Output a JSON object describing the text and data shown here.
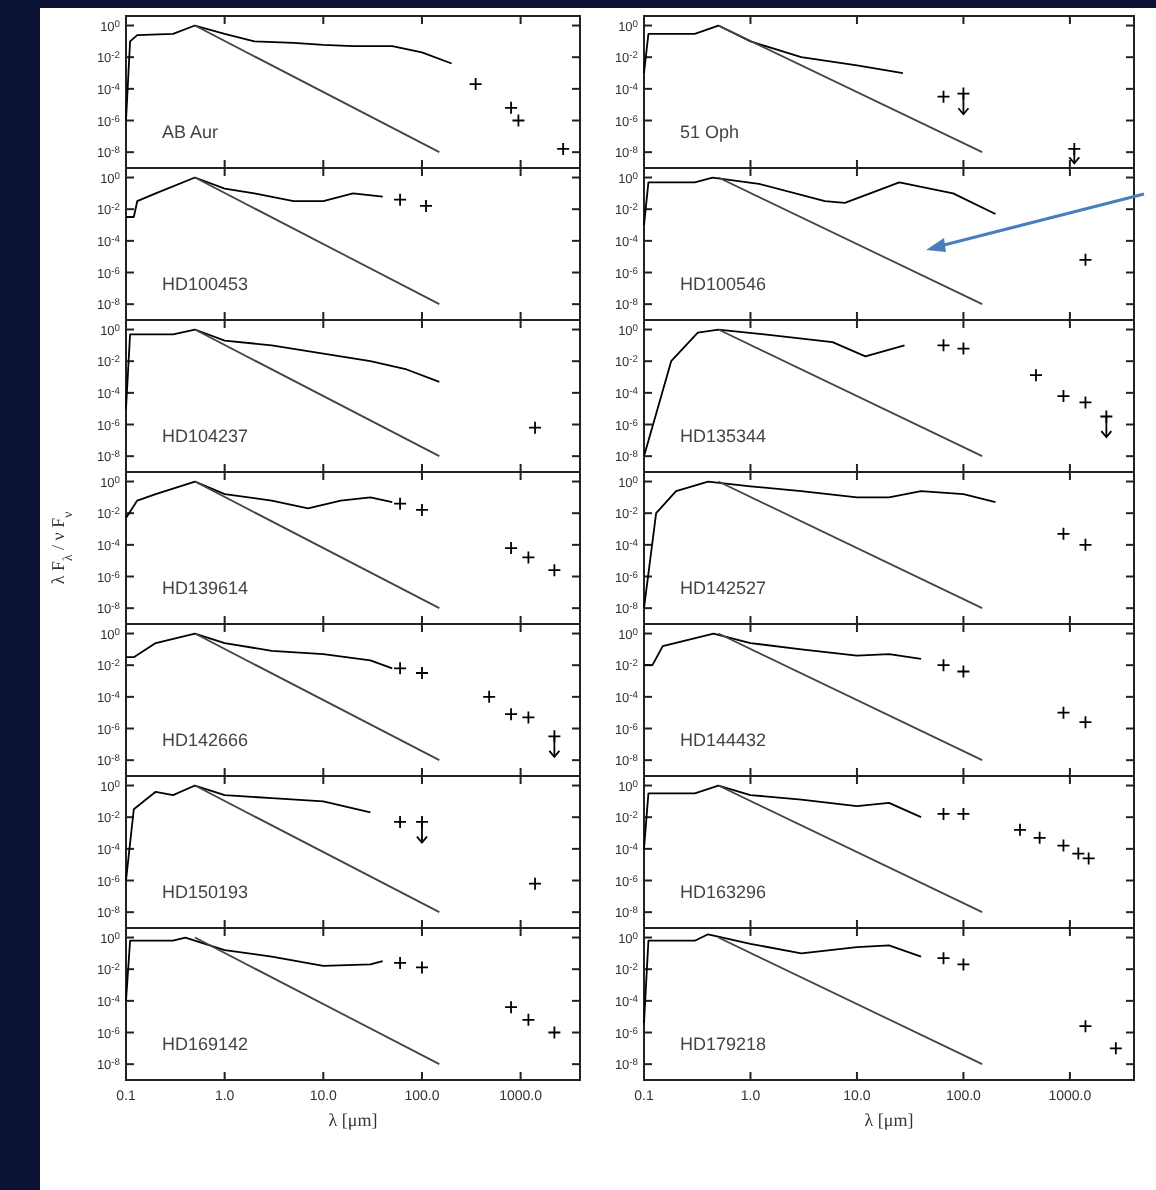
{
  "chart_data": [
    {
      "type": "line",
      "log": "xy",
      "xlim": [
        0.1,
        4000
      ],
      "ylim": [
        1e-09,
        4
      ],
      "tick_labels": "y",
      "annotations": [
        "AB Aur"
      ],
      "xticks": [
        {
          "value": 1,
          "label": null
        },
        {
          "value": 10,
          "label": null
        },
        {
          "value": 100,
          "label": null
        },
        {
          "value": 1000,
          "label": null
        }
      ],
      "yticks": [
        {
          "value": 1,
          "label": "10$^{0}$"
        },
        {
          "value": 0.01,
          "label": "10$^{-2}$"
        },
        {
          "value": 0.0001,
          "label": "10$^{-4}$"
        },
        {
          "value": 1e-06,
          "label": "10$^{-6}$"
        },
        {
          "value": 1e-08,
          "label": "10$^{-8}$"
        }
      ],
      "series": [
        {
          "type": "line",
          "color": "#000000",
          "x": [
            0.1,
            0.11,
            0.13,
            0.3,
            0.5,
            1,
            2,
            5,
            10,
            20,
            50,
            100,
            200
          ],
          "values": [
            1e-06,
            0.1,
            0.25,
            0.3,
            1,
            0.3,
            0.1,
            0.08,
            0.06,
            0.05,
            0.05,
            0.02,
            0.004
          ]
        },
        {
          "type": "scatter",
          "marker": "cross",
          "color": "#000000",
          "x": [
            350,
            800,
            950,
            2700
          ],
          "values": [
            0.0002,
            6.3e-06,
            1e-06,
            1.6e-08
          ]
        },
        {
          "type": "line",
          "color": "#444444",
          "x": [
            0.5,
            150
          ],
          "values": [
            1,
            1e-08
          ]
        }
      ]
    },
    {
      "type": "line",
      "log": "xy",
      "xlim": [
        0.1,
        4000
      ],
      "ylim": [
        1e-09,
        4
      ],
      "tick_labels": "y",
      "annotations": [
        "51 Oph"
      ],
      "xticks": [
        {
          "value": 1,
          "label": null
        },
        {
          "value": 10,
          "label": null
        },
        {
          "value": 100,
          "label": null
        },
        {
          "value": 1000,
          "label": null
        }
      ],
      "yticks": [
        {
          "value": 1,
          "label": "10$^{0}$"
        },
        {
          "value": 0.01,
          "label": "10$^{-2}$"
        },
        {
          "value": 0.0001,
          "label": "10$^{-4}$"
        },
        {
          "value": 1e-06,
          "label": "10$^{-6}$"
        },
        {
          "value": 1e-08,
          "label": "10$^{-8}$"
        }
      ],
      "series": [
        {
          "type": "line",
          "color": "#000000",
          "x": [
            0.1,
            0.11,
            0.3,
            0.5,
            1,
            3,
            10,
            27
          ],
          "values": [
            0.001,
            0.3,
            0.3,
            1,
            0.1,
            0.01,
            0.003,
            0.001
          ]
        },
        {
          "type": "scatter",
          "marker": "cross",
          "color": "#000000",
          "x": [
            65
          ],
          "values": [
            3.2e-05
          ]
        },
        {
          "type": "scatter",
          "marker": "cross",
          "color": "#000000",
          "x": [
            100,
            1100
          ],
          "values": [
            5e-05,
            1.6e-08
          ],
          "errors": [
            [
              2.5e-06,
              5e-05
            ],
            [
              2e-09,
              1.6e-08
            ]
          ]
        },
        {
          "type": "line",
          "color": "#444444",
          "x": [
            0.5,
            150
          ],
          "values": [
            1,
            1e-08
          ]
        }
      ]
    },
    {
      "type": "line",
      "log": "xy",
      "xlim": [
        0.1,
        4000
      ],
      "ylim": [
        1e-09,
        4
      ],
      "tick_labels": "y",
      "annotations": [
        "HD100453"
      ],
      "xticks": [
        {
          "value": 1,
          "label": null
        },
        {
          "value": 10,
          "label": null
        },
        {
          "value": 100,
          "label": null
        },
        {
          "value": 1000,
          "label": null
        }
      ],
      "yticks": [
        {
          "value": 1,
          "label": "10$^{0}$"
        },
        {
          "value": 0.01,
          "label": "10$^{-2}$"
        },
        {
          "value": 0.0001,
          "label": "10$^{-4}$"
        },
        {
          "value": 1e-06,
          "label": "10$^{-6}$"
        },
        {
          "value": 1e-08,
          "label": "10$^{-8}$"
        }
      ],
      "series": [
        {
          "type": "line",
          "color": "#000000",
          "x": [
            0.1,
            0.12,
            0.13,
            0.2,
            0.5,
            1,
            2,
            5,
            10,
            20,
            40
          ],
          "values": [
            0.0032,
            0.0032,
            0.032,
            0.1,
            1,
            0.2,
            0.1,
            0.032,
            0.032,
            0.1,
            0.063
          ]
        },
        {
          "type": "scatter",
          "marker": "cross",
          "color": "#000000",
          "x": [
            60,
            110
          ],
          "values": [
            0.04,
            0.016
          ]
        },
        {
          "type": "line",
          "color": "#444444",
          "x": [
            0.5,
            150
          ],
          "values": [
            1,
            1e-08
          ]
        }
      ]
    },
    {
      "type": "line",
      "log": "xy",
      "xlim": [
        0.1,
        4000
      ],
      "ylim": [
        1e-09,
        4
      ],
      "tick_labels": "y",
      "annotations": [
        "HD100546"
      ],
      "xticks": [
        {
          "value": 1,
          "label": null
        },
        {
          "value": 10,
          "label": null
        },
        {
          "value": 100,
          "label": null
        },
        {
          "value": 1000,
          "label": null
        }
      ],
      "yticks": [
        {
          "value": 1,
          "label": "10$^{0}$"
        },
        {
          "value": 0.01,
          "label": "10$^{-2}$"
        },
        {
          "value": 0.0001,
          "label": "10$^{-4}$"
        },
        {
          "value": 1e-06,
          "label": "10$^{-6}$"
        },
        {
          "value": 1e-08,
          "label": "10$^{-8}$"
        }
      ],
      "series": [
        {
          "type": "line",
          "color": "#000000",
          "x": [
            0.1,
            0.11,
            0.3,
            0.44,
            1.2,
            5,
            7.7,
            25,
            80,
            200
          ],
          "values": [
            0.001,
            0.5,
            0.5,
            1,
            0.4,
            0.032,
            0.025,
            0.5,
            0.1,
            0.005
          ]
        },
        {
          "type": "scatter",
          "marker": "cross",
          "color": "#000000",
          "x": [
            1400
          ],
          "values": [
            6.3e-06
          ]
        },
        {
          "type": "line",
          "color": "#444444",
          "x": [
            0.5,
            150
          ],
          "values": [
            1,
            1e-08
          ]
        }
      ]
    },
    {
      "type": "line",
      "log": "xy",
      "xlim": [
        0.1,
        4000
      ],
      "ylim": [
        1e-09,
        4
      ],
      "tick_labels": "y",
      "annotations": [
        "HD104237"
      ],
      "xticks": [
        {
          "value": 1,
          "label": null
        },
        {
          "value": 10,
          "label": null
        },
        {
          "value": 100,
          "label": null
        },
        {
          "value": 1000,
          "label": null
        }
      ],
      "yticks": [
        {
          "value": 1,
          "label": "10$^{0}$"
        },
        {
          "value": 0.01,
          "label": "10$^{-2}$"
        },
        {
          "value": 0.0001,
          "label": "10$^{-4}$"
        },
        {
          "value": 1e-06,
          "label": "10$^{-6}$"
        },
        {
          "value": 1e-08,
          "label": "10$^{-8}$"
        }
      ],
      "series": [
        {
          "type": "line",
          "color": "#000000",
          "x": [
            0.1,
            0.11,
            0.3,
            0.5,
            1,
            3,
            10,
            30,
            70,
            150
          ],
          "values": [
            1e-05,
            0.5,
            0.5,
            1,
            0.2,
            0.1,
            0.03,
            0.01,
            0.003,
            0.0005
          ]
        },
        {
          "type": "scatter",
          "marker": "cross",
          "color": "#000000",
          "x": [
            1400
          ],
          "values": [
            6.3e-07
          ]
        },
        {
          "type": "line",
          "color": "#444444",
          "x": [
            0.5,
            150
          ],
          "values": [
            1,
            1e-08
          ]
        }
      ]
    },
    {
      "type": "line",
      "log": "xy",
      "xlim": [
        0.1,
        4000
      ],
      "ylim": [
        1e-09,
        4
      ],
      "tick_labels": "y",
      "annotations": [
        "HD135344"
      ],
      "xticks": [
        {
          "value": 1,
          "label": null
        },
        {
          "value": 10,
          "label": null
        },
        {
          "value": 100,
          "label": null
        },
        {
          "value": 1000,
          "label": null
        }
      ],
      "yticks": [
        {
          "value": 1,
          "label": "10$^{0}$"
        },
        {
          "value": 0.01,
          "label": "10$^{-2}$"
        },
        {
          "value": 0.0001,
          "label": "10$^{-4}$"
        },
        {
          "value": 1e-06,
          "label": "10$^{-6}$"
        },
        {
          "value": 1e-08,
          "label": "10$^{-8}$"
        }
      ],
      "series": [
        {
          "type": "line",
          "color": "#000000",
          "x": [
            0.1,
            0.18,
            0.32,
            0.5,
            1.8,
            5.9,
            12,
            28
          ],
          "values": [
            1e-08,
            0.01,
            0.63,
            1,
            0.4,
            0.16,
            0.02,
            0.1
          ]
        },
        {
          "type": "scatter",
          "marker": "cross",
          "color": "#000000",
          "x": [
            65,
            100,
            480,
            870,
            1400
          ],
          "values": [
            0.1,
            0.063,
            0.0013,
            6.3e-05,
            2.5e-05
          ]
        },
        {
          "type": "scatter",
          "marker": "cross",
          "color": "#000000",
          "x": [
            2200
          ],
          "values": [
            3.2e-06
          ],
          "errors": [
            [
              1.6e-07,
              3.2e-06
            ]
          ]
        },
        {
          "type": "line",
          "color": "#444444",
          "x": [
            0.5,
            150
          ],
          "values": [
            1,
            1e-08
          ]
        }
      ]
    },
    {
      "type": "line",
      "log": "xy",
      "xlim": [
        0.1,
        4000
      ],
      "ylim": [
        1e-09,
        4
      ],
      "tick_labels": "y",
      "ylabel": "λ F$_{λ}$ / ν F$_{ν}$",
      "annotations": [
        "HD139614"
      ],
      "xticks": [
        {
          "value": 1,
          "label": null
        },
        {
          "value": 10,
          "label": null
        },
        {
          "value": 100,
          "label": null
        },
        {
          "value": 1000,
          "label": null
        }
      ],
      "yticks": [
        {
          "value": 1,
          "label": "10$^{0}$"
        },
        {
          "value": 0.01,
          "label": "10$^{-2}$"
        },
        {
          "value": 0.0001,
          "label": "10$^{-4}$"
        },
        {
          "value": 1e-06,
          "label": "10$^{-6}$"
        },
        {
          "value": 1e-08,
          "label": "10$^{-8}$"
        }
      ],
      "series": [
        {
          "type": "line",
          "color": "#000000",
          "x": [
            0.1,
            0.13,
            0.2,
            0.5,
            1,
            3,
            7,
            15,
            30,
            50
          ],
          "values": [
            0.005,
            0.063,
            0.16,
            1,
            0.16,
            0.063,
            0.02,
            0.063,
            0.1,
            0.05
          ]
        },
        {
          "type": "scatter",
          "marker": "cross",
          "color": "#000000",
          "x": [
            60,
            100,
            800,
            1200,
            2200
          ],
          "values": [
            0.04,
            0.016,
            6.3e-05,
            1.6e-05,
            2.5e-06
          ]
        },
        {
          "type": "line",
          "color": "#444444",
          "x": [
            0.5,
            150
          ],
          "values": [
            1,
            1e-08
          ]
        }
      ]
    },
    {
      "type": "line",
      "log": "xy",
      "xlim": [
        0.1,
        4000
      ],
      "ylim": [
        1e-09,
        4
      ],
      "tick_labels": "y",
      "annotations": [
        "HD142527"
      ],
      "xticks": [
        {
          "value": 1,
          "label": null
        },
        {
          "value": 10,
          "label": null
        },
        {
          "value": 100,
          "label": null
        },
        {
          "value": 1000,
          "label": null
        }
      ],
      "yticks": [
        {
          "value": 1,
          "label": "10$^{0}$"
        },
        {
          "value": 0.01,
          "label": "10$^{-2}$"
        },
        {
          "value": 0.0001,
          "label": "10$^{-4}$"
        },
        {
          "value": 1e-06,
          "label": "10$^{-6}$"
        },
        {
          "value": 1e-08,
          "label": "10$^{-8}$"
        }
      ],
      "series": [
        {
          "type": "line",
          "color": "#000000",
          "x": [
            0.1,
            0.13,
            0.2,
            0.4,
            1,
            3,
            10,
            20,
            40,
            100,
            200
          ],
          "values": [
            1e-08,
            0.01,
            0.25,
            1,
            0.5,
            0.25,
            0.1,
            0.1,
            0.25,
            0.16,
            0.05
          ]
        },
        {
          "type": "scatter",
          "marker": "cross",
          "color": "#000000",
          "x": [
            870,
            1400
          ],
          "values": [
            0.0005,
            0.0001
          ]
        },
        {
          "type": "line",
          "color": "#444444",
          "x": [
            0.5,
            150
          ],
          "values": [
            1,
            1e-08
          ]
        }
      ]
    },
    {
      "type": "line",
      "log": "xy",
      "xlim": [
        0.1,
        4000
      ],
      "ylim": [
        1e-09,
        4
      ],
      "tick_labels": "y",
      "annotations": [
        "HD142666"
      ],
      "xticks": [
        {
          "value": 1,
          "label": null
        },
        {
          "value": 10,
          "label": null
        },
        {
          "value": 100,
          "label": null
        },
        {
          "value": 1000,
          "label": null
        }
      ],
      "yticks": [
        {
          "value": 1,
          "label": "10$^{0}$"
        },
        {
          "value": 0.01,
          "label": "10$^{-2}$"
        },
        {
          "value": 0.0001,
          "label": "10$^{-4}$"
        },
        {
          "value": 1e-06,
          "label": "10$^{-6}$"
        },
        {
          "value": 1e-08,
          "label": "10$^{-8}$"
        }
      ],
      "series": [
        {
          "type": "line",
          "color": "#000000",
          "x": [
            0.1,
            0.12,
            0.2,
            0.5,
            1,
            3,
            10,
            30,
            50
          ],
          "values": [
            0.032,
            0.032,
            0.25,
            1,
            0.25,
            0.08,
            0.05,
            0.02,
            0.0063
          ]
        },
        {
          "type": "scatter",
          "marker": "cross",
          "color": "#000000",
          "x": [
            60,
            100,
            480,
            800,
            1200
          ],
          "values": [
            0.0063,
            0.0032,
            0.0001,
            8e-06,
            5e-06
          ]
        },
        {
          "type": "scatter",
          "marker": "cross",
          "color": "#000000",
          "x": [
            2200
          ],
          "values": [
            3.2e-07
          ],
          "errors": [
            [
              1.6e-08,
              3.2e-07
            ]
          ]
        },
        {
          "type": "line",
          "color": "#444444",
          "x": [
            0.5,
            150
          ],
          "values": [
            1,
            1e-08
          ]
        }
      ]
    },
    {
      "type": "line",
      "log": "xy",
      "xlim": [
        0.1,
        4000
      ],
      "ylim": [
        1e-09,
        4
      ],
      "tick_labels": "y",
      "annotations": [
        "HD144432"
      ],
      "xticks": [
        {
          "value": 1,
          "label": null
        },
        {
          "value": 10,
          "label": null
        },
        {
          "value": 100,
          "label": null
        },
        {
          "value": 1000,
          "label": null
        }
      ],
      "yticks": [
        {
          "value": 1,
          "label": "10$^{0}$"
        },
        {
          "value": 0.01,
          "label": "10$^{-2}$"
        },
        {
          "value": 0.0001,
          "label": "10$^{-4}$"
        },
        {
          "value": 1e-06,
          "label": "10$^{-6}$"
        },
        {
          "value": 1e-08,
          "label": "10$^{-8}$"
        }
      ],
      "series": [
        {
          "type": "line",
          "color": "#000000",
          "x": [
            0.1,
            0.12,
            0.15,
            0.45,
            1,
            3,
            10,
            20,
            40
          ],
          "values": [
            0.01,
            0.01,
            0.16,
            1,
            0.25,
            0.1,
            0.04,
            0.05,
            0.025
          ]
        },
        {
          "type": "scatter",
          "marker": "cross",
          "color": "#000000",
          "x": [
            65,
            100,
            870,
            1400
          ],
          "values": [
            0.01,
            0.004,
            1e-05,
            2.5e-06
          ]
        },
        {
          "type": "line",
          "color": "#444444",
          "x": [
            0.5,
            150
          ],
          "values": [
            1,
            1e-08
          ]
        }
      ]
    },
    {
      "type": "line",
      "log": "xy",
      "xlim": [
        0.1,
        4000
      ],
      "ylim": [
        1e-09,
        4
      ],
      "tick_labels": "y",
      "annotations": [
        "HD150193"
      ],
      "xticks": [
        {
          "value": 1,
          "label": null
        },
        {
          "value": 10,
          "label": null
        },
        {
          "value": 100,
          "label": null
        },
        {
          "value": 1000,
          "label": null
        }
      ],
      "yticks": [
        {
          "value": 1,
          "label": "10$^{0}$"
        },
        {
          "value": 0.01,
          "label": "10$^{-2}$"
        },
        {
          "value": 0.0001,
          "label": "10$^{-4}$"
        },
        {
          "value": 1e-06,
          "label": "10$^{-6}$"
        },
        {
          "value": 1e-08,
          "label": "10$^{-8}$"
        }
      ],
      "series": [
        {
          "type": "line",
          "color": "#000000",
          "x": [
            0.1,
            0.12,
            0.2,
            0.3,
            0.5,
            1,
            3,
            10,
            30
          ],
          "values": [
            1e-06,
            0.032,
            0.4,
            0.25,
            1,
            0.25,
            0.16,
            0.1,
            0.02
          ]
        },
        {
          "type": "scatter",
          "marker": "cross",
          "color": "#000000",
          "x": [
            60,
            1400
          ],
          "values": [
            0.005,
            6.3e-07
          ]
        },
        {
          "type": "scatter",
          "marker": "cross",
          "color": "#000000",
          "x": [
            100
          ],
          "values": [
            0.005
          ],
          "errors": [
            [
              0.00025,
              0.005
            ]
          ]
        },
        {
          "type": "line",
          "color": "#444444",
          "x": [
            0.5,
            150
          ],
          "values": [
            1,
            1e-08
          ]
        }
      ]
    },
    {
      "type": "line",
      "log": "xy",
      "xlim": [
        0.1,
        4000
      ],
      "ylim": [
        1e-09,
        4
      ],
      "tick_labels": "y",
      "annotations": [
        "HD163296"
      ],
      "xticks": [
        {
          "value": 1,
          "label": null
        },
        {
          "value": 10,
          "label": null
        },
        {
          "value": 100,
          "label": null
        },
        {
          "value": 1000,
          "label": null
        }
      ],
      "yticks": [
        {
          "value": 1,
          "label": "10$^{0}$"
        },
        {
          "value": 0.01,
          "label": "10$^{-2}$"
        },
        {
          "value": 0.0001,
          "label": "10$^{-4}$"
        },
        {
          "value": 1e-06,
          "label": "10$^{-6}$"
        },
        {
          "value": 1e-08,
          "label": "10$^{-8}$"
        }
      ],
      "series": [
        {
          "type": "line",
          "color": "#000000",
          "x": [
            0.1,
            0.11,
            0.3,
            0.5,
            1,
            3,
            10,
            20,
            40
          ],
          "values": [
            0.0001,
            0.32,
            0.32,
            1,
            0.25,
            0.13,
            0.05,
            0.08,
            0.01
          ]
        },
        {
          "type": "scatter",
          "marker": "cross",
          "color": "#000000",
          "x": [
            65,
            100,
            340,
            520,
            870,
            1200,
            1500
          ],
          "values": [
            0.016,
            0.016,
            0.0016,
            0.0005,
            0.00016,
            5e-05,
            2.5e-05
          ]
        },
        {
          "type": "line",
          "color": "#444444",
          "x": [
            0.5,
            150
          ],
          "values": [
            1,
            1e-08
          ]
        }
      ]
    },
    {
      "type": "line",
      "log": "xy",
      "xlim": [
        0.1,
        4000
      ],
      "ylim": [
        1e-09,
        4
      ],
      "xlabel": "λ [μm]",
      "annotations": [
        "HD169142"
      ],
      "xticks": [
        0.1,
        {
          "value": 1,
          "label": "1.0"
        },
        {
          "value": 10,
          "label": "10.0"
        },
        {
          "value": 100,
          "label": "100.0"
        },
        {
          "value": 1000,
          "label": "1000.0"
        }
      ],
      "yticks": [
        {
          "value": 1,
          "label": "10$^{0}$"
        },
        {
          "value": 0.01,
          "label": "10$^{-2}$"
        },
        {
          "value": 0.0001,
          "label": "10$^{-4}$"
        },
        {
          "value": 1e-06,
          "label": "10$^{-6}$"
        },
        {
          "value": 1e-08,
          "label": "10$^{-8}$"
        }
      ],
      "series": [
        {
          "type": "line",
          "color": "#000000",
          "x": [
            0.1,
            0.11,
            0.3,
            0.4,
            1,
            3,
            10,
            30,
            40
          ],
          "values": [
            0.0001,
            0.63,
            0.63,
            1,
            0.16,
            0.063,
            0.016,
            0.02,
            0.032
          ]
        },
        {
          "type": "scatter",
          "marker": "cross",
          "color": "#000000",
          "x": [
            60,
            100,
            800,
            1200,
            2200
          ],
          "values": [
            0.025,
            0.013,
            4e-05,
            6.3e-06,
            1e-06
          ]
        },
        {
          "type": "line",
          "color": "#444444",
          "x": [
            0.5,
            150
          ],
          "values": [
            1,
            1e-08
          ]
        }
      ]
    },
    {
      "type": "line",
      "log": "xy",
      "xlim": [
        0.1,
        4000
      ],
      "ylim": [
        1e-09,
        4
      ],
      "xlabel": "λ [μm]",
      "annotations": [
        "HD179218"
      ],
      "xticks": [
        0.1,
        {
          "value": 1,
          "label": "1.0"
        },
        {
          "value": 10,
          "label": "10.0"
        },
        {
          "value": 100,
          "label": "100.0"
        },
        {
          "value": 1000,
          "label": "1000.0"
        }
      ],
      "yticks": [
        {
          "value": 1,
          "label": "10$^{0}$"
        },
        {
          "value": 0.01,
          "label": "10$^{-2}$"
        },
        {
          "value": 0.0001,
          "label": "10$^{-4}$"
        },
        {
          "value": 1e-06,
          "label": "10$^{-6}$"
        },
        {
          "value": 1e-08,
          "label": "10$^{-8}$"
        }
      ],
      "series": [
        {
          "type": "line",
          "color": "#000000",
          "x": [
            0.1,
            0.11,
            0.3,
            0.4,
            1,
            3,
            10,
            20,
            40
          ],
          "values": [
            4e-06,
            0.63,
            0.63,
            1.6,
            0.4,
            0.1,
            0.25,
            0.32,
            0.063
          ]
        },
        {
          "type": "scatter",
          "marker": "cross",
          "color": "#000000",
          "x": [
            65,
            100,
            1400,
            2700
          ],
          "values": [
            0.05,
            0.02,
            2.5e-06,
            1e-07
          ]
        },
        {
          "type": "line",
          "color": "#444444",
          "x": [
            0.5,
            150
          ],
          "values": [
            1,
            1e-08
          ]
        }
      ]
    }
  ]
}
